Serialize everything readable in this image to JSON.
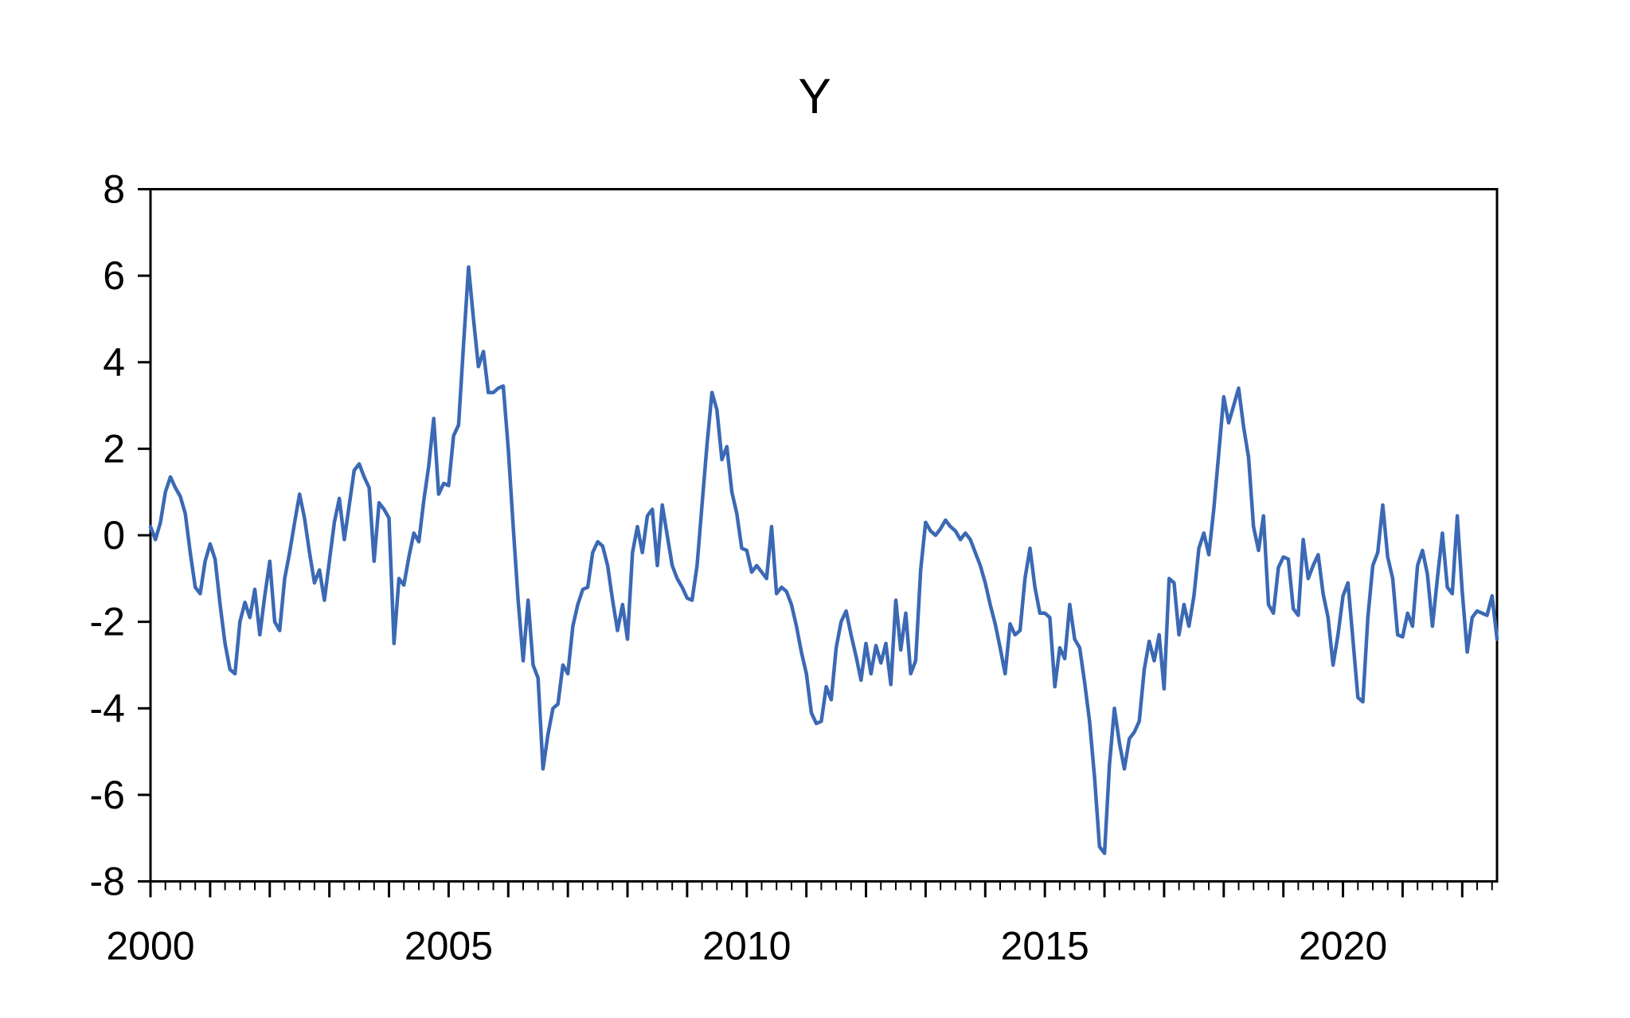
{
  "chart_data": {
    "type": "line",
    "title": "Y",
    "xlabel": "",
    "ylabel": "",
    "grid": false,
    "legend": "none",
    "frame": true,
    "background": "#ffffff",
    "axis_color": "#000000",
    "text_color": "#000000",
    "ylim": [
      -8,
      8
    ],
    "ytick_step": 2,
    "ytick_labels": [
      "8",
      "6",
      "4",
      "2",
      "0",
      "-2",
      "-4",
      "-6",
      "-8"
    ],
    "x": {
      "start_year": 2000,
      "start_month": 1,
      "end_year": 2022,
      "end_month": 8,
      "frequency": "monthly"
    },
    "xtick_labels": [
      "2000",
      "2005",
      "2010",
      "2015",
      "2020"
    ],
    "xtick_label_years": [
      2000,
      2005,
      2010,
      2015,
      2020
    ],
    "minor_tick_months": 3,
    "series": [
      {
        "name": "Y",
        "color": "#3B69B4",
        "values": [
          0.2,
          -0.1,
          0.3,
          1.0,
          1.35,
          1.1,
          0.9,
          0.5,
          -0.4,
          -1.2,
          -1.35,
          -0.6,
          -0.2,
          -0.55,
          -1.6,
          -2.5,
          -3.1,
          -3.2,
          -2.0,
          -1.55,
          -1.9,
          -1.25,
          -2.3,
          -1.4,
          -0.6,
          -2.0,
          -2.2,
          -1.0,
          -0.4,
          0.3,
          0.95,
          0.4,
          -0.4,
          -1.1,
          -0.8,
          -1.5,
          -0.6,
          0.3,
          0.85,
          -0.1,
          0.7,
          1.5,
          1.65,
          1.35,
          1.1,
          -0.6,
          0.75,
          0.6,
          0.4,
          -2.5,
          -1.0,
          -1.15,
          -0.5,
          0.05,
          -0.15,
          0.8,
          1.6,
          2.7,
          0.95,
          1.2,
          1.15,
          2.3,
          2.55,
          4.4,
          6.2,
          5.0,
          3.9,
          4.25,
          3.3,
          3.3,
          3.4,
          3.45,
          2.0,
          0.2,
          -1.5,
          -2.9,
          -1.5,
          -3.0,
          -3.3,
          -5.4,
          -4.6,
          -4.0,
          -3.9,
          -3.0,
          -3.2,
          -2.1,
          -1.6,
          -1.25,
          -1.2,
          -0.4,
          -0.15,
          -0.25,
          -0.7,
          -1.5,
          -2.2,
          -1.6,
          -2.4,
          -0.4,
          0.2,
          -0.4,
          0.45,
          0.6,
          -0.7,
          0.7,
          0.0,
          -0.7,
          -1.0,
          -1.2,
          -1.45,
          -1.5,
          -0.7,
          0.7,
          2.1,
          3.3,
          2.9,
          1.75,
          2.05,
          1.0,
          0.5,
          -0.3,
          -0.35,
          -0.85,
          -0.7,
          -0.85,
          -1.0,
          0.2,
          -1.35,
          -1.2,
          -1.3,
          -1.6,
          -2.1,
          -2.7,
          -3.2,
          -4.1,
          -4.35,
          -4.3,
          -3.5,
          -3.8,
          -2.6,
          -2.0,
          -1.75,
          -2.3,
          -2.8,
          -3.35,
          -2.5,
          -3.2,
          -2.55,
          -2.95,
          -2.5,
          -3.45,
          -1.5,
          -2.65,
          -1.8,
          -3.2,
          -2.9,
          -0.8,
          0.3,
          0.1,
          0.0,
          0.15,
          0.35,
          0.2,
          0.1,
          -0.1,
          0.05,
          -0.1,
          -0.4,
          -0.7,
          -1.1,
          -1.6,
          -2.05,
          -2.6,
          -3.2,
          -2.05,
          -2.3,
          -2.2,
          -1.0,
          -0.3,
          -1.2,
          -1.8,
          -1.8,
          -1.9,
          -3.5,
          -2.6,
          -2.85,
          -1.6,
          -2.4,
          -2.6,
          -3.4,
          -4.3,
          -5.6,
          -7.2,
          -7.35,
          -5.3,
          -4.0,
          -4.8,
          -5.4,
          -4.7,
          -4.55,
          -4.3,
          -3.1,
          -2.45,
          -2.9,
          -2.3,
          -3.55,
          -1.0,
          -1.1,
          -2.3,
          -1.6,
          -2.1,
          -1.4,
          -0.3,
          0.05,
          -0.45,
          0.6,
          1.9,
          3.2,
          2.6,
          3.0,
          3.4,
          2.5,
          1.8,
          0.2,
          -0.35,
          0.45,
          -1.6,
          -1.8,
          -0.75,
          -0.5,
          -0.55,
          -1.7,
          -1.85,
          -0.1,
          -1.0,
          -0.7,
          -0.45,
          -1.35,
          -1.9,
          -3.0,
          -2.3,
          -1.4,
          -1.1,
          -2.4,
          -3.75,
          -3.85,
          -1.9,
          -0.7,
          -0.4,
          0.7,
          -0.5,
          -1.0,
          -2.3,
          -2.35,
          -1.8,
          -2.1,
          -0.7,
          -0.35,
          -0.9,
          -2.1,
          -1.0,
          0.05,
          -1.2,
          -1.35,
          0.45,
          -1.3,
          -2.7,
          -1.9,
          -1.75,
          -1.8,
          -1.85,
          -1.4,
          -2.4
        ]
      }
    ]
  }
}
